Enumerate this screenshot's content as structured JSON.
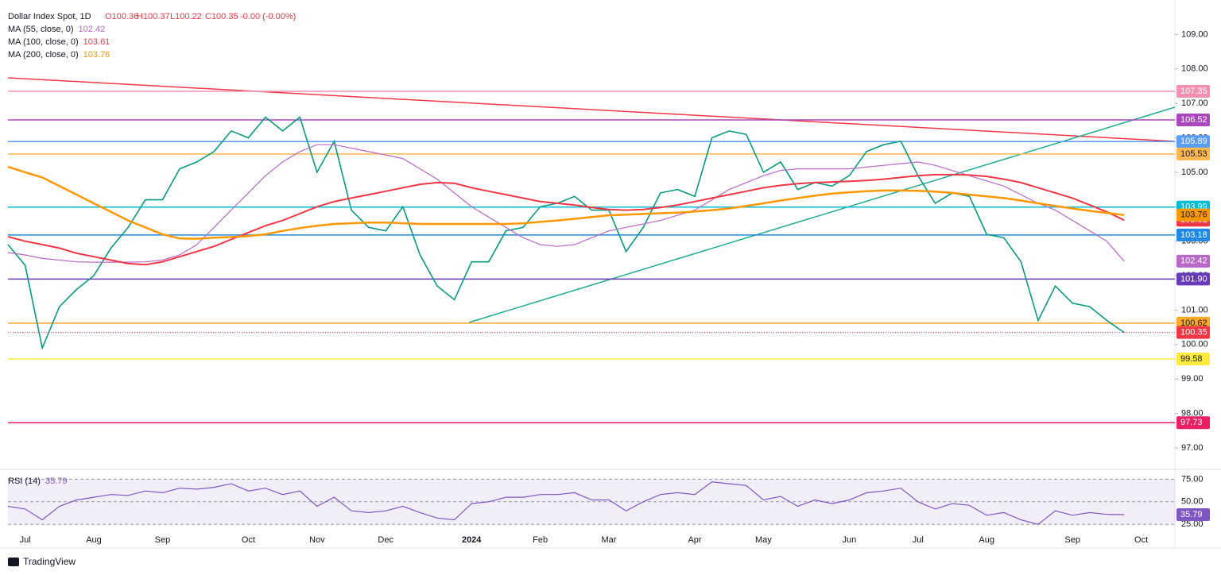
{
  "chart_data": {
    "type": "line",
    "title": "Dollar Index Spot, 1D",
    "ohlc": [
      "O100.36",
      "H100.37",
      "L100.22",
      "C100.35",
      "-0.00 (-0.00%)"
    ],
    "categories": [
      null,
      "Jul",
      null,
      null,
      null,
      "Aug",
      null,
      null,
      null,
      "Sep",
      null,
      null,
      null,
      null,
      "Oct",
      null,
      null,
      null,
      "Nov",
      null,
      null,
      null,
      "Dec",
      null,
      null,
      null,
      null,
      "2024",
      null,
      null,
      null,
      "Feb",
      null,
      null,
      null,
      "Mar",
      null,
      null,
      null,
      null,
      "Apr",
      null,
      null,
      null,
      "May",
      null,
      null,
      null,
      null,
      "Jun",
      null,
      null,
      null,
      "Jul",
      null,
      null,
      null,
      "Aug",
      null,
      null,
      null,
      null,
      "Sep",
      null,
      null,
      null,
      "Oct"
    ],
    "series": [
      {
        "color": "#089981",
        "values": [
          102.9,
          102.3,
          99.9,
          101.1,
          101.6,
          102.0,
          102.8,
          103.4,
          104.2,
          104.2,
          105.1,
          105.3,
          105.6,
          106.2,
          106.0,
          106.6,
          106.2,
          106.6,
          105.0,
          105.9,
          103.9,
          103.4,
          103.3,
          104.0,
          102.6,
          101.7,
          101.3,
          102.4,
          102.4,
          103.3,
          103.4,
          104.0,
          104.1,
          104.3,
          103.9,
          103.9,
          102.7,
          103.4,
          104.4,
          104.5,
          104.3,
          106.0,
          106.2,
          106.1,
          105.0,
          105.3,
          104.5,
          104.7,
          104.6,
          104.9,
          105.6,
          105.8,
          105.9,
          104.9,
          104.1,
          104.4,
          104.3,
          103.2,
          103.1,
          102.4,
          100.7,
          101.7,
          101.2,
          101.1,
          100.7,
          100.35,
          null
        ]
      },
      {
        "name": "MA (55, close, 0)",
        "color": "#ba68c8",
        "values": [
          102.67,
          102.6,
          102.5,
          102.45,
          102.4,
          102.39,
          102.39,
          102.39,
          102.4,
          102.45,
          102.6,
          102.9,
          103.4,
          103.9,
          104.4,
          104.9,
          105.3,
          105.6,
          105.8,
          105.8,
          105.7,
          105.6,
          105.5,
          105.4,
          105.1,
          104.8,
          104.4,
          104.0,
          103.7,
          103.4,
          103.1,
          102.9,
          102.85,
          102.9,
          103.1,
          103.3,
          103.4,
          103.5,
          103.6,
          103.75,
          103.9,
          104.2,
          104.5,
          104.7,
          104.9,
          105.05,
          105.1,
          105.1,
          105.1,
          105.1,
          105.15,
          105.2,
          105.25,
          105.3,
          105.2,
          105.05,
          104.9,
          104.75,
          104.6,
          104.35,
          104.1,
          103.9,
          103.6,
          103.3,
          103.0,
          102.42,
          null
        ]
      },
      {
        "name": "MA (100, close, 0)",
        "color": "#f23645",
        "values": [
          103.13,
          103.0,
          102.9,
          102.8,
          102.65,
          102.55,
          102.45,
          102.35,
          102.32,
          102.4,
          102.55,
          102.7,
          102.85,
          103.05,
          103.25,
          103.45,
          103.6,
          103.8,
          104.0,
          104.15,
          104.25,
          104.35,
          104.45,
          104.55,
          104.65,
          104.7,
          104.68,
          104.55,
          104.45,
          104.35,
          104.25,
          104.15,
          104.1,
          104.05,
          103.98,
          103.92,
          103.9,
          103.92,
          103.98,
          104.05,
          104.15,
          104.25,
          104.35,
          104.45,
          104.55,
          104.62,
          104.67,
          104.7,
          104.72,
          104.74,
          104.76,
          104.8,
          104.85,
          104.9,
          104.93,
          104.93,
          104.92,
          104.88,
          104.8,
          104.7,
          104.55,
          104.4,
          104.25,
          104.05,
          103.85,
          103.61,
          null
        ]
      },
      {
        "name": "MA (200, close, 0)",
        "color": "#ff9800",
        "values": [
          105.16,
          105.0,
          104.85,
          104.6,
          104.35,
          104.1,
          103.85,
          103.6,
          103.4,
          103.2,
          103.08,
          103.07,
          103.1,
          103.12,
          103.15,
          103.2,
          103.3,
          103.38,
          103.45,
          103.5,
          103.52,
          103.54,
          103.54,
          103.52,
          103.5,
          103.5,
          103.5,
          103.5,
          103.5,
          103.5,
          103.52,
          103.56,
          103.6,
          103.65,
          103.7,
          103.75,
          103.77,
          103.79,
          103.81,
          103.83,
          103.86,
          103.9,
          103.95,
          104.02,
          104.1,
          104.18,
          104.25,
          104.32,
          104.38,
          104.42,
          104.45,
          104.47,
          104.47,
          104.46,
          104.44,
          104.4,
          104.35,
          104.3,
          104.25,
          104.18,
          104.1,
          104.02,
          103.95,
          103.88,
          103.82,
          103.76,
          null
        ]
      },
      {
        "name": "RSI (14)",
        "color": "#7e57c2",
        "axis": "y2",
        "values": [
          45,
          42,
          30,
          45,
          52,
          55,
          58,
          57,
          62,
          60,
          65,
          64,
          66,
          70,
          62,
          65,
          58,
          62,
          45,
          55,
          40,
          38,
          40,
          45,
          38,
          32,
          30,
          48,
          50,
          55,
          55,
          58,
          58,
          60,
          52,
          52,
          40,
          50,
          58,
          60,
          58,
          72,
          70,
          68,
          52,
          56,
          45,
          52,
          48,
          52,
          60,
          62,
          65,
          50,
          42,
          48,
          46,
          35,
          38,
          30,
          25,
          40,
          35,
          38,
          36,
          35.79,
          null
        ]
      }
    ],
    "ylim": [
      96.4,
      110.0
    ],
    "yticks": [
      {
        "value": 97,
        "label": "97.00"
      },
      {
        "value": 98,
        "label": "98.00"
      },
      {
        "value": 99,
        "label": "99.00"
      },
      {
        "value": 100,
        "label": "100.00"
      },
      {
        "value": 101,
        "label": "101.00"
      },
      {
        "value": 102,
        "label": "102.00"
      },
      {
        "value": 103,
        "label": "103.00"
      },
      {
        "value": 104,
        "label": "104.00"
      },
      {
        "value": 105,
        "label": "105.00"
      },
      {
        "value": 106,
        "label": "106.00"
      },
      {
        "value": 107,
        "label": "107.00"
      },
      {
        "value": 108,
        "label": "108.00"
      },
      {
        "value": 109,
        "label": "109.00"
      }
    ],
    "y2lim": [
      12,
      85
    ],
    "y2ticks": [
      {
        "value": 25,
        "label": "25.00"
      },
      {
        "value": 50,
        "label": "50.00"
      },
      {
        "value": 75,
        "label": "75.00"
      }
    ],
    "levels": [
      {
        "value": 107.35,
        "color": "#f48fb1"
      },
      {
        "value": 106.52,
        "color": "#ab47bc"
      },
      {
        "value": 105.89,
        "color": "#5b9cf6"
      },
      {
        "value": 105.53,
        "color": "#ffb74d"
      },
      {
        "value": 103.99,
        "color": "#00bcd4"
      },
      {
        "value": 103.18,
        "color": "#1e88e5"
      },
      {
        "value": {
          "value": 101.9,
          "label": "101.90"
        },
        "color": "#673ab7"
      },
      {
        "value": 100.62,
        "color": "#ffa726"
      },
      {
        "value": 99.58,
        "color": "#ffeb3b"
      },
      {
        "value": 97.73,
        "color": "#e91e63"
      }
    ],
    "source": "TradingView"
  }
}
